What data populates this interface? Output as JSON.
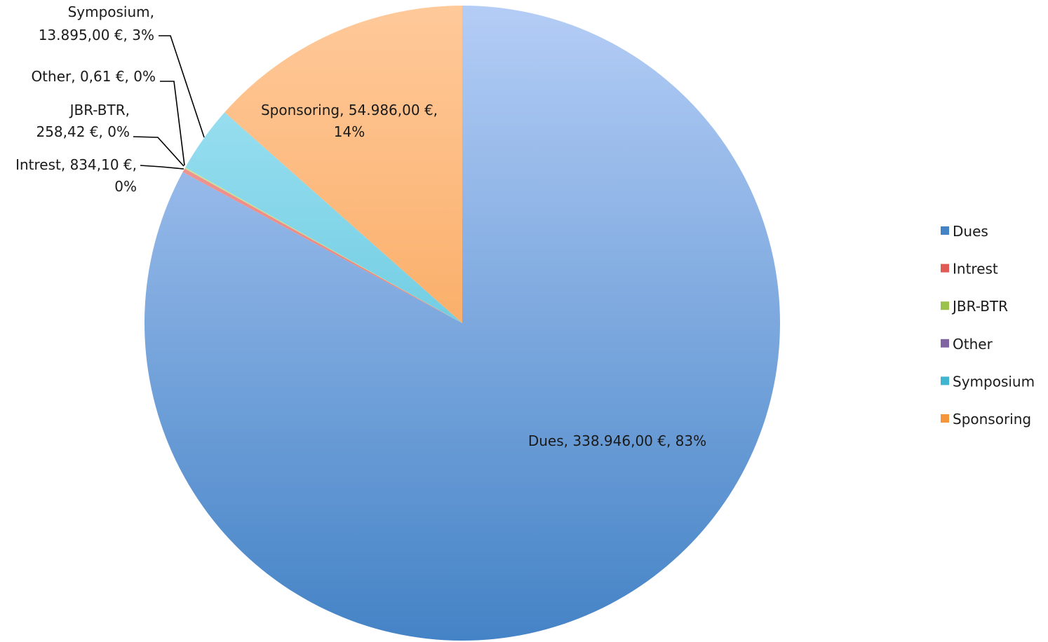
{
  "chart_data": {
    "type": "pie",
    "title": "",
    "start_angle_deg": 0,
    "direction": "clockwise",
    "legend_position": "right",
    "categories": [
      "Dues",
      "Intrest",
      "JBR-BTR",
      "Other",
      "Symposium",
      "Sponsoring"
    ],
    "values": [
      338946.0,
      834.1,
      258.42,
      0.61,
      13895.0,
      54986.0
    ],
    "value_labels": [
      "338.946,00 €",
      "834,10 €",
      "258,42 €",
      "0,61 €",
      "13.895,00 €",
      "54.986,00 €"
    ],
    "percent_labels": [
      "83%",
      "0%",
      "0%",
      "0%",
      "3%",
      "14%"
    ],
    "data_labels": [
      {
        "lines": [
          "Dues, 338.946,00 €, 83%"
        ]
      },
      {
        "lines": [
          "Intrest, 834,10 €,",
          "0%"
        ]
      },
      {
        "lines": [
          "JBR-BTR,",
          "258,42 €, 0%"
        ]
      },
      {
        "lines": [
          "Other, 0,61 €, 0%"
        ]
      },
      {
        "lines": [
          "Symposium,",
          "13.895,00 €, 3%"
        ]
      },
      {
        "lines": [
          "Sponsoring, 54.986,00 €,",
          "14%"
        ]
      }
    ],
    "colors": [
      {
        "light": "#b4cdf6",
        "dark": "#4483c6"
      },
      {
        "light": "#f4a7a5",
        "dark": "#e05b54"
      },
      {
        "light": "#d7ecae",
        "dark": "#9bc34c"
      },
      {
        "light": "#c8b7e0",
        "dark": "#8064a2"
      },
      {
        "light": "#a8e6f6",
        "dark": "#3fb5cf"
      },
      {
        "light": "#ffc99a",
        "dark": "#f6963c"
      }
    ]
  }
}
